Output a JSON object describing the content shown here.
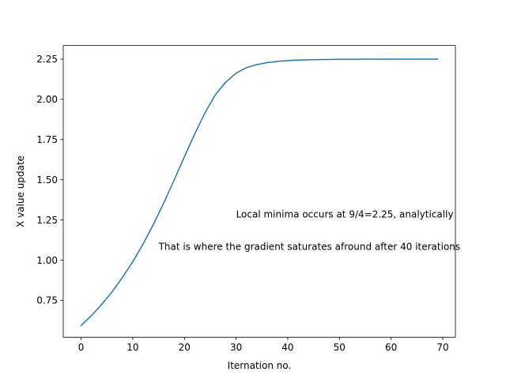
{
  "chart_data": {
    "type": "line",
    "title": "",
    "xlabel": "Iternation no.",
    "ylabel": "X value update",
    "xlim": [
      -3.45,
      72.45
    ],
    "ylim": [
      0.52,
      2.335
    ],
    "grid": false,
    "xticks": [
      0,
      10,
      20,
      30,
      40,
      50,
      60,
      70
    ],
    "xtick_labels": [
      "0",
      "10",
      "20",
      "30",
      "40",
      "50",
      "60",
      "70"
    ],
    "yticks": [
      0.75,
      1.0,
      1.25,
      1.5,
      1.75,
      2.0,
      2.25
    ],
    "ytick_labels": [
      "0.75",
      "1.00",
      "1.25",
      "1.50",
      "1.75",
      "2.00",
      "2.25"
    ],
    "series": [
      {
        "color": "#1f77b4",
        "x": [
          0,
          2,
          4,
          6,
          8,
          10,
          12,
          14,
          16,
          18,
          20,
          22,
          24,
          26,
          28,
          30,
          32,
          34,
          36,
          38,
          40,
          42,
          44,
          46,
          48,
          50,
          52,
          54,
          56,
          58,
          60,
          62,
          64,
          66,
          68,
          69
        ],
        "y": [
          0.593,
          0.655,
          0.725,
          0.803,
          0.892,
          0.99,
          1.1,
          1.222,
          1.355,
          1.497,
          1.643,
          1.786,
          1.917,
          2.029,
          2.107,
          2.163,
          2.197,
          2.216,
          2.228,
          2.236,
          2.241,
          2.244,
          2.246,
          2.247,
          2.248,
          2.249,
          2.249,
          2.2495,
          2.2497,
          2.2498,
          2.2499,
          2.2499,
          2.25,
          2.25,
          2.25,
          2.25
        ]
      }
    ],
    "annotations": [
      {
        "text": "Local minima occurs at 9/4=2.25, analytically",
        "x": 30,
        "y": 1.25
      },
      {
        "text": "That is where the gradient saturates afround after 40 iterations",
        "x": 15,
        "y": 1.05
      }
    ]
  }
}
